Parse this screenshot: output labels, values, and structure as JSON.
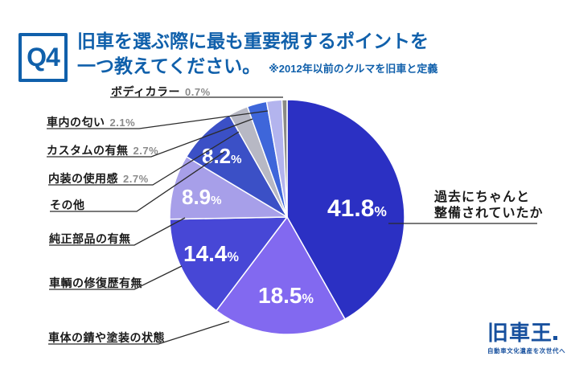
{
  "page": {
    "background": "#ffffff",
    "accent_color": "#1060ab"
  },
  "header": {
    "question_number": "Q4",
    "title_line1": "旧車を選ぶ際に最も重要視するポイントを",
    "title_line2": "一つ教えてください。",
    "note": "※2012年以前のクルマを旧車と定義"
  },
  "chart_data": {
    "type": "pie",
    "unit": "%",
    "start_angle_deg": 0,
    "direction": "clockwise",
    "percent_sign": "%",
    "items": [
      {
        "label": "過去にちゃんと整備されていたか",
        "value": 41.8,
        "color": "#2b30c3"
      },
      {
        "label": "車体の錆や塗装の状態",
        "value": 18.5,
        "color": "#8269f0"
      },
      {
        "label": "車輌の修復歴有無",
        "value": 14.4,
        "color": "#4747d6"
      },
      {
        "label": "純正部品の有無",
        "value": 8.9,
        "color": "#a79fe9"
      },
      {
        "label": "その他",
        "value": 8.2,
        "color": "#3b50c6"
      },
      {
        "label": "内装の使用感",
        "value": 2.7,
        "color": "#b7b8c4"
      },
      {
        "label": "カスタムの有無",
        "value": 2.7,
        "color": "#3e66da"
      },
      {
        "label": "車内の匂い",
        "value": 2.1,
        "color": "#b3b4ee"
      },
      {
        "label": "ボディカラー",
        "value": 0.7,
        "color": "#8b8b85"
      }
    ]
  },
  "right_callout": {
    "line1": "過去にちゃんと",
    "line2": "整備されていたか"
  },
  "logo": {
    "name": "旧車王",
    "tagline": "自動車文化遺産を次世代へ"
  }
}
